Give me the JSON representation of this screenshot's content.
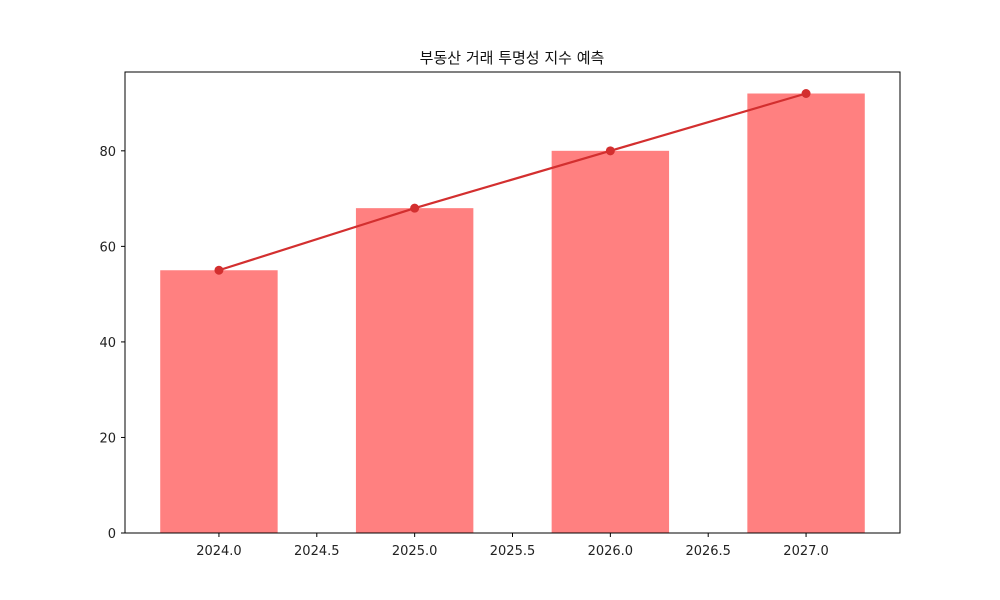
{
  "chart_data": {
    "type": "bar",
    "title": "부동산 거래 투명성 지수 예측",
    "xlabel": "",
    "ylabel": "",
    "categories": [
      2024,
      2025,
      2026,
      2027
    ],
    "series": [
      {
        "name": "bar",
        "type": "bar",
        "values": [
          55,
          68,
          80,
          92
        ],
        "color": "#ff8080"
      },
      {
        "name": "line",
        "type": "line",
        "values": [
          55,
          68,
          80,
          92
        ],
        "color": "#d32f2f",
        "marker": "o"
      }
    ],
    "bar_width": 0.6,
    "xlim": [
      2023.52,
      2027.48
    ],
    "ylim": [
      0,
      96.5
    ],
    "xticks": [
      2024.0,
      2024.5,
      2025.0,
      2025.5,
      2026.0,
      2026.5,
      2027.0
    ],
    "xtick_labels": [
      "2024.0",
      "2024.5",
      "2025.0",
      "2025.5",
      "2026.0",
      "2026.5",
      "2027.0"
    ],
    "yticks": [
      0,
      20,
      40,
      60,
      80
    ],
    "ytick_labels": [
      "0",
      "20",
      "40",
      "60",
      "80"
    ],
    "grid": false,
    "legend": null
  }
}
